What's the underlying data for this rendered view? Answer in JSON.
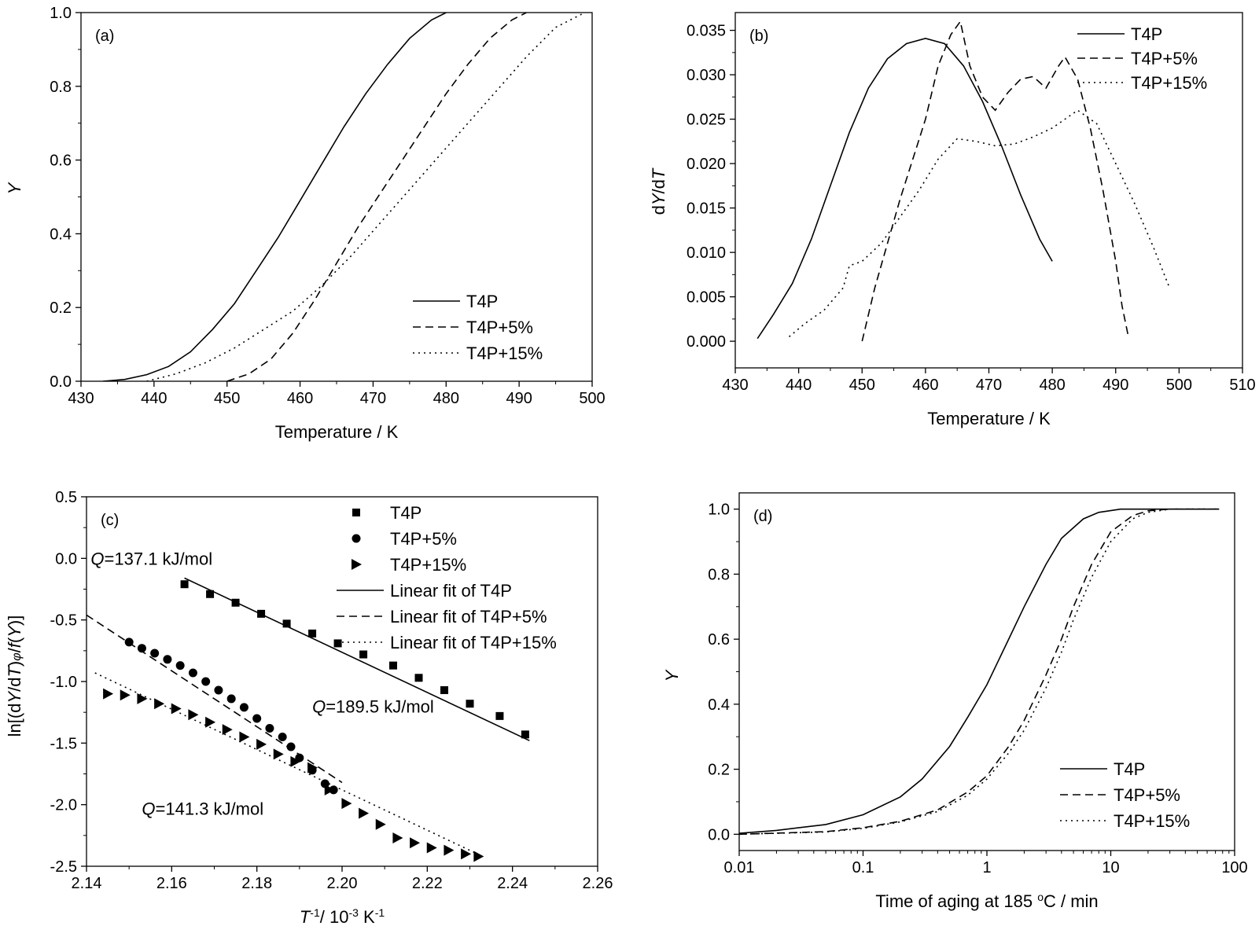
{
  "chart_data": [
    {
      "panel": "(a)",
      "type": "line",
      "xlabel": "Temperature / K",
      "ylabel": "Y",
      "xlim": [
        430,
        500
      ],
      "ylim": [
        0,
        1.0
      ],
      "xticks": [
        430,
        440,
        450,
        460,
        470,
        480,
        490,
        500
      ],
      "yticks": [
        0.0,
        0.2,
        0.4,
        0.6,
        0.8,
        1.0
      ],
      "xtick_labels": [
        "430",
        "440",
        "450",
        "460",
        "470",
        "480",
        "490",
        "500"
      ],
      "ytick_labels": [
        "0.0",
        "0.2",
        "0.4",
        "0.6",
        "0.8",
        "1.0"
      ],
      "legend_position": "bottom-right",
      "series": [
        {
          "name": "T4P",
          "style": "solid",
          "x": [
            433,
            436,
            439,
            442,
            445,
            448,
            451,
            454,
            457,
            460,
            463,
            466,
            469,
            472,
            475,
            478,
            480
          ],
          "y": [
            0.0,
            0.005,
            0.018,
            0.04,
            0.08,
            0.14,
            0.21,
            0.3,
            0.39,
            0.49,
            0.59,
            0.69,
            0.78,
            0.86,
            0.93,
            0.98,
            1.0
          ]
        },
        {
          "name": "T4P+5%",
          "style": "dashed",
          "x": [
            450,
            453,
            456,
            459,
            462,
            465,
            468,
            471,
            474,
            477,
            480,
            483,
            486,
            489,
            491
          ],
          "y": [
            0.0,
            0.02,
            0.06,
            0.13,
            0.22,
            0.32,
            0.42,
            0.51,
            0.6,
            0.69,
            0.78,
            0.86,
            0.93,
            0.98,
            1.0
          ]
        },
        {
          "name": "T4P+15%",
          "style": "dotted",
          "x": [
            439,
            443,
            447,
            451,
            455,
            459,
            463,
            467,
            471,
            475,
            479,
            483,
            487,
            491,
            495,
            499
          ],
          "y": [
            0.0,
            0.02,
            0.05,
            0.09,
            0.14,
            0.19,
            0.26,
            0.34,
            0.43,
            0.52,
            0.61,
            0.7,
            0.79,
            0.88,
            0.96,
            1.0
          ]
        }
      ]
    },
    {
      "panel": "(b)",
      "type": "line",
      "xlabel": "Temperature / K",
      "ylabel": "dY/dT",
      "xlim": [
        430,
        510
      ],
      "ylim": [
        -0.003,
        0.037
      ],
      "xticks": [
        430,
        440,
        450,
        460,
        470,
        480,
        490,
        500,
        510
      ],
      "yticks": [
        0.0,
        0.005,
        0.01,
        0.015,
        0.02,
        0.025,
        0.03,
        0.035
      ],
      "xtick_labels": [
        "430",
        "440",
        "450",
        "460",
        "470",
        "480",
        "490",
        "500",
        "510"
      ],
      "ytick_labels": [
        "0.000",
        "0.005",
        "0.010",
        "0.015",
        "0.020",
        "0.025",
        "0.030",
        "0.035"
      ],
      "legend_position": "top-right",
      "series": [
        {
          "name": "T4P",
          "style": "solid",
          "x": [
            433.5,
            436,
            439,
            442,
            445,
            448,
            451,
            454,
            457,
            460,
            463,
            466,
            469,
            472,
            475,
            478,
            480
          ],
          "y": [
            0.0003,
            0.003,
            0.0065,
            0.0115,
            0.0175,
            0.0235,
            0.0285,
            0.0318,
            0.0335,
            0.0341,
            0.0335,
            0.031,
            0.027,
            0.022,
            0.0165,
            0.0115,
            0.009
          ]
        },
        {
          "name": "T4P+5%",
          "style": "dashed",
          "x": [
            450,
            452,
            454,
            456,
            458,
            460,
            462,
            464,
            465.5,
            467,
            469,
            471,
            473,
            475,
            477,
            479,
            481,
            482,
            484,
            486,
            488,
            490,
            491,
            492
          ],
          "y": [
            0.0,
            0.006,
            0.011,
            0.016,
            0.0205,
            0.025,
            0.031,
            0.0345,
            0.036,
            0.031,
            0.0275,
            0.026,
            0.028,
            0.0295,
            0.0298,
            0.0285,
            0.031,
            0.032,
            0.0295,
            0.024,
            0.017,
            0.009,
            0.004,
            0.0005
          ]
        },
        {
          "name": "T4P+15%",
          "style": "dotted",
          "x": [
            438.5,
            441,
            444,
            447,
            448,
            450,
            453,
            456,
            459,
            462,
            465,
            468,
            471,
            474,
            477,
            480,
            484,
            487,
            490,
            493,
            496,
            498.5
          ],
          "y": [
            0.0005,
            0.002,
            0.0035,
            0.006,
            0.0085,
            0.009,
            0.011,
            0.014,
            0.017,
            0.0205,
            0.0228,
            0.0225,
            0.022,
            0.0222,
            0.023,
            0.024,
            0.026,
            0.0245,
            0.02,
            0.0155,
            0.0105,
            0.006
          ]
        }
      ]
    },
    {
      "panel": "(c)",
      "type": "scatter",
      "xlabel": "T⁻¹/ 10⁻³ K⁻¹",
      "ylabel": "ln[(dY/dT)φ/f(Y)]",
      "xlim": [
        2.14,
        2.26
      ],
      "ylim": [
        -2.5,
        0.5
      ],
      "xticks": [
        2.14,
        2.16,
        2.18,
        2.2,
        2.22,
        2.24,
        2.26
      ],
      "yticks": [
        -2.5,
        -2.0,
        -1.5,
        -1.0,
        -0.5,
        0.0,
        0.5
      ],
      "xtick_labels": [
        "2.14",
        "2.16",
        "2.18",
        "2.20",
        "2.22",
        "2.24",
        "2.26"
      ],
      "ytick_labels": [
        "-2.5",
        "-2.0",
        "-1.5",
        "-1.0",
        "-0.5",
        "0.0",
        "0.5"
      ],
      "legend_position": "top-right",
      "annotations": [
        {
          "label": "Q",
          "text": "=137.1 kJ/mol",
          "x": 2.141,
          "y": 0.0
        },
        {
          "label": "Q",
          "text": "=189.5 kJ/mol",
          "x": 2.193,
          "y": -1.2
        },
        {
          "label": "Q",
          "text": "=141.3 kJ/mol",
          "x": 2.153,
          "y": -2.03
        }
      ],
      "series": [
        {
          "name": "T4P",
          "marker": "square",
          "x": [
            2.163,
            2.169,
            2.175,
            2.181,
            2.187,
            2.193,
            2.199,
            2.205,
            2.212,
            2.218,
            2.224,
            2.23,
            2.237,
            2.243
          ],
          "y": [
            -0.21,
            -0.29,
            -0.36,
            -0.45,
            -0.53,
            -0.61,
            -0.69,
            -0.78,
            -0.87,
            -0.97,
            -1.07,
            -1.18,
            -1.28,
            -1.43
          ]
        },
        {
          "name": "T4P+5%",
          "marker": "circle",
          "x": [
            2.15,
            2.153,
            2.156,
            2.159,
            2.162,
            2.165,
            2.168,
            2.171,
            2.174,
            2.177,
            2.18,
            2.183,
            2.186,
            2.188,
            2.19,
            2.193,
            2.196,
            2.198
          ],
          "y": [
            -0.68,
            -0.73,
            -0.77,
            -0.82,
            -0.87,
            -0.93,
            -1.0,
            -1.07,
            -1.14,
            -1.21,
            -1.3,
            -1.38,
            -1.45,
            -1.53,
            -1.62,
            -1.72,
            -1.83,
            -1.88
          ]
        },
        {
          "name": "T4P+15%",
          "marker": "triangle-right",
          "x": [
            2.145,
            2.149,
            2.153,
            2.157,
            2.161,
            2.165,
            2.169,
            2.173,
            2.177,
            2.181,
            2.185,
            2.189,
            2.193,
            2.197,
            2.201,
            2.205,
            2.209,
            2.213,
            2.217,
            2.221,
            2.225,
            2.229,
            2.232
          ],
          "y": [
            -1.1,
            -1.11,
            -1.14,
            -1.18,
            -1.22,
            -1.27,
            -1.33,
            -1.39,
            -1.45,
            -1.51,
            -1.59,
            -1.65,
            -1.7,
            -1.88,
            -1.99,
            -2.07,
            -2.16,
            -2.27,
            -2.31,
            -2.35,
            -2.37,
            -2.4,
            -2.42
          ]
        },
        {
          "name": "Linear fit of T4P",
          "style": "solid",
          "x": [
            2.163,
            2.244
          ],
          "y": [
            -0.16,
            -1.48
          ]
        },
        {
          "name": "Linear fit of T4P+5%",
          "style": "dashed",
          "x": [
            2.14,
            2.2
          ],
          "y": [
            -0.46,
            -1.82
          ]
        },
        {
          "name": "Linear fit of T4P+15%",
          "style": "dotted",
          "x": [
            2.142,
            2.233
          ],
          "y": [
            -0.93,
            -2.42
          ]
        }
      ]
    },
    {
      "panel": "(d)",
      "type": "line",
      "xlabel": "Time of aging at 185 °C / min",
      "ylabel": "Y",
      "xscale": "log",
      "xlim": [
        0.01,
        100
      ],
      "ylim": [
        -0.05,
        1.05
      ],
      "xticks": [
        0.01,
        0.1,
        1,
        10,
        100
      ],
      "yticks": [
        0.0,
        0.2,
        0.4,
        0.6,
        0.8,
        1.0
      ],
      "xtick_labels": [
        "0.01",
        "0.1",
        "1",
        "10",
        "100"
      ],
      "ytick_labels": [
        "0.0",
        "0.2",
        "0.4",
        "0.6",
        "0.8",
        "1.0"
      ],
      "legend_position": "bottom-right",
      "series": [
        {
          "name": "T4P",
          "style": "solid",
          "x": [
            0.01,
            0.02,
            0.05,
            0.1,
            0.2,
            0.3,
            0.5,
            0.7,
            1,
            1.5,
            2,
            3,
            4,
            6,
            8,
            12,
            20,
            40,
            75
          ],
          "y": [
            0.003,
            0.012,
            0.03,
            0.06,
            0.115,
            0.17,
            0.27,
            0.36,
            0.46,
            0.6,
            0.7,
            0.83,
            0.91,
            0.97,
            0.99,
            1.0,
            1.0,
            1.0,
            1.0
          ]
        },
        {
          "name": "T4P+5%",
          "style": "dashed",
          "x": [
            0.01,
            0.05,
            0.1,
            0.2,
            0.4,
            0.7,
            1,
            1.5,
            2,
            3,
            4,
            5,
            7,
            10,
            15,
            20,
            30,
            50,
            75
          ],
          "y": [
            0.0,
            0.008,
            0.02,
            0.04,
            0.075,
            0.13,
            0.18,
            0.27,
            0.35,
            0.49,
            0.6,
            0.7,
            0.83,
            0.93,
            0.98,
            0.995,
            1.0,
            1.0,
            1.0
          ]
        },
        {
          "name": "T4P+15%",
          "style": "dotted",
          "x": [
            0.01,
            0.05,
            0.1,
            0.2,
            0.4,
            0.7,
            1,
            1.5,
            2,
            3,
            4,
            5,
            7,
            10,
            15,
            20,
            30,
            50,
            75
          ],
          "y": [
            0.0,
            0.007,
            0.018,
            0.038,
            0.07,
            0.12,
            0.17,
            0.25,
            0.32,
            0.45,
            0.56,
            0.66,
            0.79,
            0.9,
            0.97,
            0.99,
            1.0,
            1.0,
            1.0
          ]
        }
      ]
    }
  ]
}
